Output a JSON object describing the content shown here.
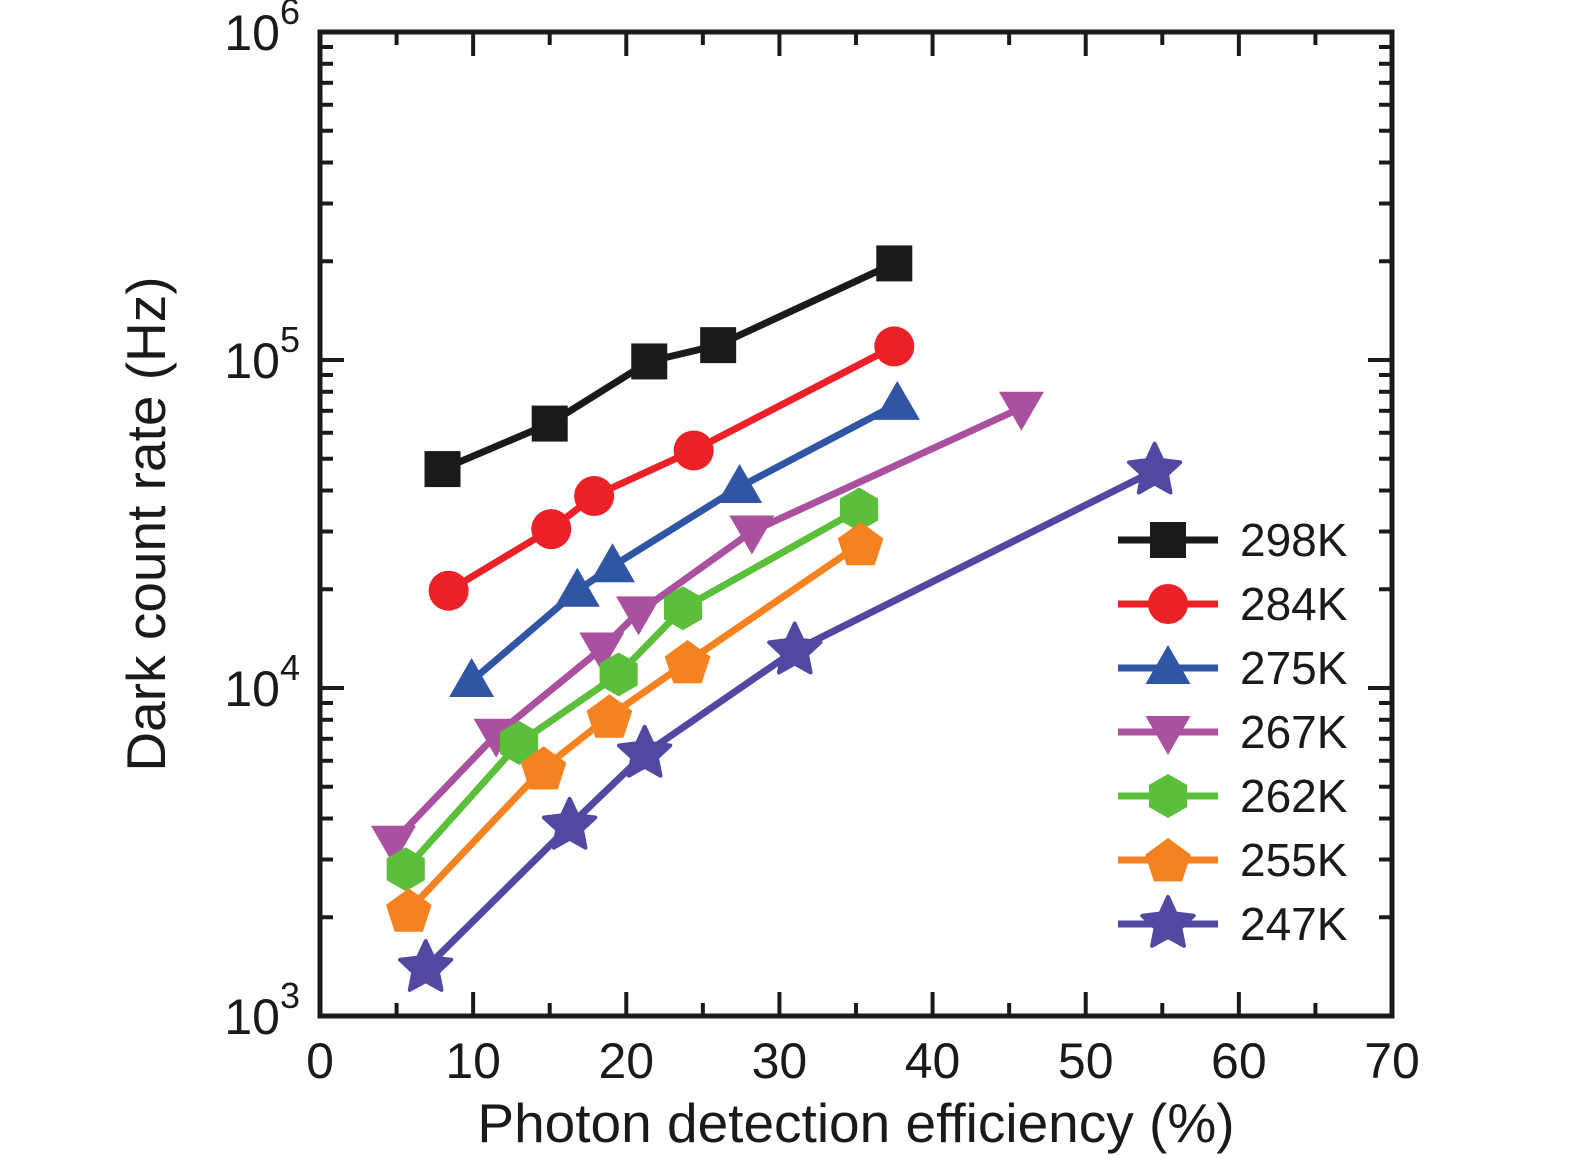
{
  "chart_data": {
    "type": "line",
    "title": "",
    "xlabel": "Photon detection efficiency (%)",
    "ylabel": "Dark count rate (Hz)",
    "grid": false,
    "legend_position": "right-middle",
    "frame_color": "#1a1a1a",
    "x_axis": {
      "min": 0,
      "max": 70,
      "scale": "linear",
      "major_ticks": [
        0,
        10,
        20,
        30,
        40,
        50,
        60,
        70
      ],
      "minor_tick_step": 5
    },
    "y_axis": {
      "min": 1000,
      "max": 1000000,
      "scale": "log",
      "major_ticks": [
        1000,
        10000,
        100000,
        1000000
      ],
      "tick_label_base": "10",
      "tick_label_exponents": [
        3,
        4,
        5,
        6
      ]
    },
    "series": [
      {
        "name": "298K",
        "color": "#1a1a1a",
        "marker": "square",
        "points": [
          [
            8,
            46500
          ],
          [
            15,
            64000
          ],
          [
            21.5,
            99000
          ],
          [
            26,
            111000
          ],
          [
            37.5,
            197000
          ]
        ]
      },
      {
        "name": "284K",
        "color": "#ec2027",
        "marker": "circle",
        "points": [
          [
            8.4,
            19800
          ],
          [
            15.1,
            30500
          ],
          [
            17.9,
            38500
          ],
          [
            24.4,
            53000
          ],
          [
            37.5,
            110000
          ]
        ]
      },
      {
        "name": "275K",
        "color": "#2f55a4",
        "marker": "triangle-up",
        "points": [
          [
            9.9,
            10500
          ],
          [
            16.8,
            19800
          ],
          [
            19.1,
            23500
          ],
          [
            27.4,
            41000
          ],
          [
            37.7,
            73500
          ]
        ]
      },
      {
        "name": "267K",
        "color": "#a9509f",
        "marker": "triangle-down",
        "points": [
          [
            4.8,
            3400
          ],
          [
            11.5,
            7200
          ],
          [
            18.4,
            13200
          ],
          [
            20.8,
            17000
          ],
          [
            28.2,
            30000
          ],
          [
            45.8,
            71500
          ]
        ]
      },
      {
        "name": "262K",
        "color": "#5cbf3b",
        "marker": "hexagon",
        "points": [
          [
            5.6,
            2800
          ],
          [
            13,
            6800
          ],
          [
            19.5,
            11000
          ],
          [
            23.7,
            17500
          ],
          [
            35.2,
            35000
          ]
        ]
      },
      {
        "name": "255K",
        "color": "#f58220",
        "marker": "pentagon",
        "points": [
          [
            5.8,
            2100
          ],
          [
            14.6,
            5700
          ],
          [
            18.9,
            8200
          ],
          [
            24,
            12000
          ],
          [
            35.3,
            27500
          ]
        ]
      },
      {
        "name": "247K",
        "color": "#5149a1",
        "marker": "star",
        "points": [
          [
            6.9,
            1400
          ],
          [
            16.3,
            3800
          ],
          [
            21.2,
            6300
          ],
          [
            31,
            13000
          ],
          [
            54.5,
            46000
          ]
        ]
      }
    ]
  }
}
